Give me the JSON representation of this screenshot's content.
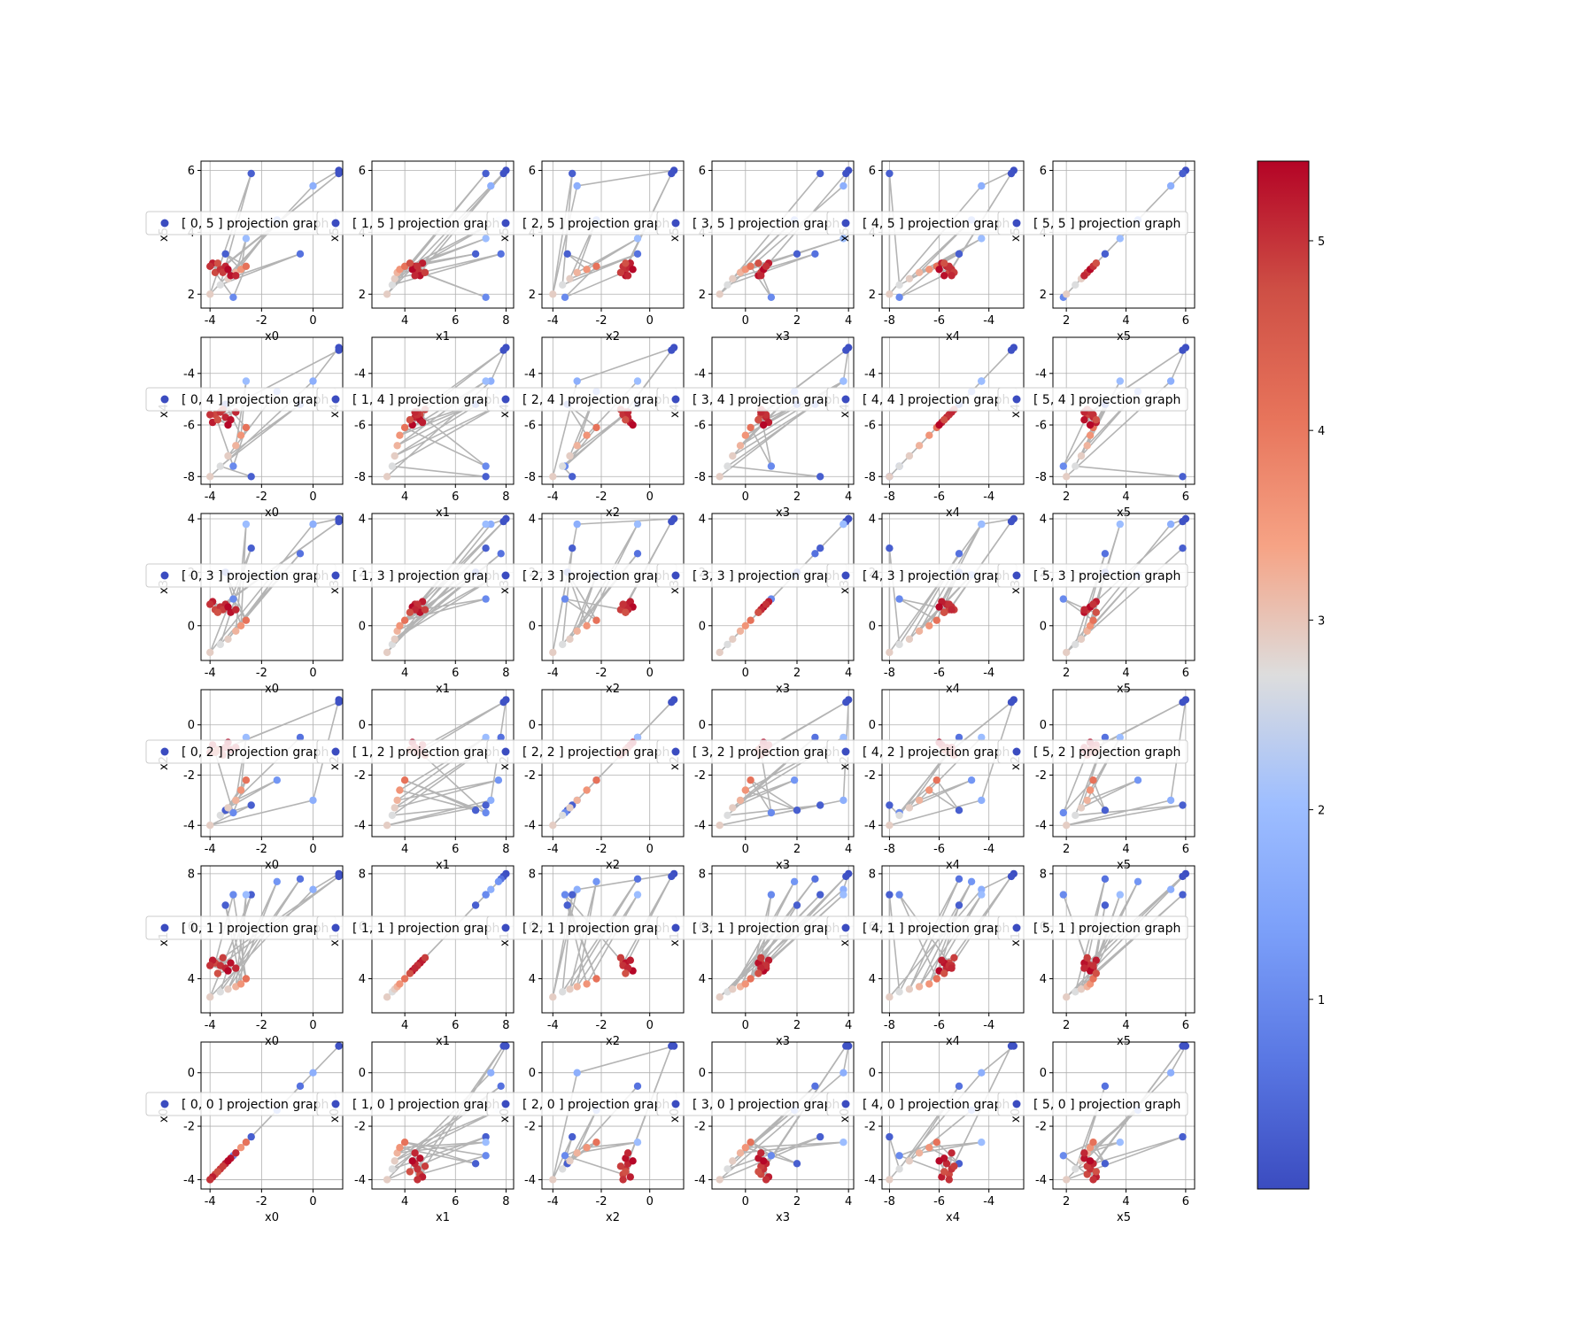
{
  "figure": {
    "type": "scatter",
    "colormap": "coolwarm",
    "colorbar": {
      "ticks": [
        "1",
        "2",
        "3",
        "4",
        "5"
      ],
      "range": [
        0.0,
        5.42
      ]
    },
    "path_color": "#b4b4b4",
    "grid": true,
    "legend_placement": "center"
  },
  "chart_data": {
    "type": "scatter",
    "dims": [
      "x0",
      "x1",
      "x2",
      "x3",
      "x4",
      "x5"
    ],
    "axis_limits": {
      "x0": [
        -4.35,
        1.15
      ],
      "x1": [
        2.7,
        8.3
      ],
      "x2": [
        -4.45,
        1.4
      ],
      "x3": [
        -1.3,
        4.2
      ],
      "x4": [
        -8.3,
        -2.6
      ],
      "x5": [
        1.55,
        6.3
      ]
    },
    "ticks": {
      "x0": [
        "-4",
        "-2",
        "0"
      ],
      "x1": [
        "4",
        "6",
        "8"
      ],
      "x2": [
        "-4",
        "-2",
        "0"
      ],
      "x3": [
        "0",
        "2",
        "4"
      ],
      "x4": [
        "-8",
        "-6",
        "-4"
      ],
      "x5": [
        "2",
        "4",
        "6"
      ]
    },
    "tick_values": {
      "x0": [
        -4,
        -2,
        0
      ],
      "x1": [
        4,
        6,
        8
      ],
      "x2": [
        -4,
        -2,
        0
      ],
      "x3": [
        0,
        2,
        4
      ],
      "x4": [
        -8,
        -6,
        -4
      ],
      "x5": [
        2,
        4,
        6
      ]
    },
    "legend_template": [
      "[ ",
      ", ",
      " ] projection graph"
    ],
    "points": {
      "columns": [
        "x0",
        "x1",
        "x2",
        "x3",
        "x4",
        "x5",
        "color_value"
      ],
      "values": [
        [
          1.0,
          8.0,
          1.0,
          4.0,
          -3.0,
          6.0,
          0.05
        ],
        [
          1.0,
          7.9,
          0.9,
          3.9,
          -3.1,
          5.9,
          0.1
        ],
        [
          -0.5,
          7.8,
          -0.5,
          2.7,
          -5.2,
          3.3,
          0.6
        ],
        [
          0.0,
          7.4,
          -3.0,
          3.8,
          -4.3,
          5.5,
          1.7
        ],
        [
          -2.4,
          7.2,
          -3.2,
          2.9,
          -8.0,
          5.9,
          0.3
        ],
        [
          -1.4,
          7.7,
          -2.2,
          1.9,
          -4.7,
          4.4,
          1.2
        ],
        [
          -2.6,
          7.2,
          -0.5,
          3.8,
          -4.3,
          3.8,
          2.0
        ],
        [
          -3.4,
          6.8,
          -3.4,
          2.0,
          -5.2,
          3.3,
          0.3
        ],
        [
          -3.1,
          7.2,
          -3.5,
          1.0,
          -7.6,
          1.9,
          1.0
        ],
        [
          -4.0,
          3.3,
          -4.0,
          -1.0,
          -8.0,
          2.0,
          2.9
        ],
        [
          -3.6,
          3.5,
          -3.6,
          -0.7,
          -7.6,
          2.3,
          2.7
        ],
        [
          -3.3,
          3.6,
          -3.3,
          -0.5,
          -7.2,
          2.5,
          2.9
        ],
        [
          -3.0,
          3.7,
          -3.0,
          -0.2,
          -6.8,
          2.7,
          3.2
        ],
        [
          -2.8,
          3.8,
          -2.6,
          0.0,
          -6.4,
          2.8,
          3.6
        ],
        [
          -2.6,
          4.0,
          -2.2,
          0.2,
          -6.1,
          2.9,
          4.1
        ],
        [
          -3.8,
          4.6,
          -1.1,
          0.6,
          -5.6,
          2.7,
          4.8
        ],
        [
          -3.6,
          4.5,
          -1.0,
          0.7,
          -5.5,
          2.8,
          5.0
        ],
        [
          -3.4,
          4.4,
          -0.9,
          0.8,
          -5.7,
          2.9,
          5.1
        ],
        [
          -3.2,
          4.6,
          -1.0,
          0.5,
          -5.8,
          2.6,
          5.3
        ],
        [
          -3.9,
          4.7,
          -0.8,
          0.9,
          -5.9,
          3.0,
          5.2
        ],
        [
          -3.5,
          4.8,
          -1.2,
          0.6,
          -5.4,
          2.7,
          4.9
        ],
        [
          -3.3,
          4.3,
          -0.7,
          0.7,
          -6.0,
          2.8,
          5.4
        ],
        [
          -4.0,
          4.5,
          -1.1,
          0.8,
          -5.6,
          2.9,
          5.0
        ],
        [
          -3.0,
          4.4,
          -0.9,
          0.6,
          -5.5,
          2.6,
          5.1
        ],
        [
          -3.7,
          4.2,
          -1.0,
          0.5,
          -5.8,
          3.0,
          4.7
        ]
      ]
    },
    "path_order": [
      0,
      3,
      9,
      4,
      10,
      2,
      11,
      5,
      12,
      6,
      13,
      7,
      14,
      8,
      15,
      1,
      16,
      17,
      18,
      19,
      20,
      21,
      22,
      23,
      24
    ]
  }
}
